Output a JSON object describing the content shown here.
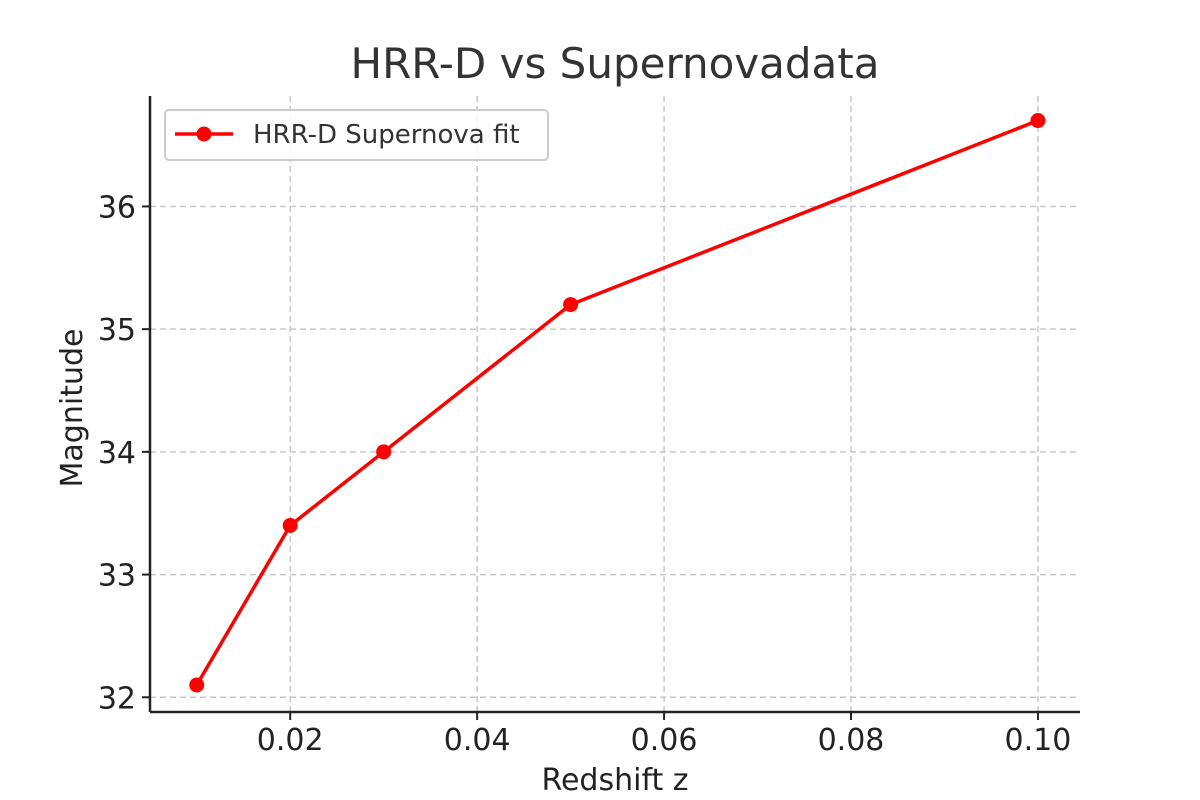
{
  "chart_data": {
    "type": "line",
    "title": "HRR-D vs Supernovadata",
    "xlabel": "Redshift z",
    "ylabel": "Magnitude",
    "xlim": [
      0.005,
      0.1045
    ],
    "ylim": [
      31.88,
      36.9
    ],
    "x_ticks": [
      {
        "value": 0.02,
        "label": "0.02"
      },
      {
        "value": 0.04,
        "label": "0.04"
      },
      {
        "value": 0.06,
        "label": "0.06"
      },
      {
        "value": 0.08,
        "label": "0.08"
      },
      {
        "value": 0.1,
        "label": "0.10"
      }
    ],
    "y_ticks": [
      {
        "value": 32,
        "label": "32"
      },
      {
        "value": 33,
        "label": "33"
      },
      {
        "value": 34,
        "label": "34"
      },
      {
        "value": 35,
        "label": "35"
      },
      {
        "value": 36,
        "label": "36"
      }
    ],
    "grid": true,
    "legend_position": "top-left",
    "series": [
      {
        "name": "HRR-D Supernova fit",
        "color": "#ff0000",
        "marker": "circle",
        "x": [
          0.01,
          0.02,
          0.03,
          0.05,
          0.1
        ],
        "y": [
          32.1,
          33.4,
          34.0,
          35.2,
          36.7
        ]
      }
    ]
  }
}
